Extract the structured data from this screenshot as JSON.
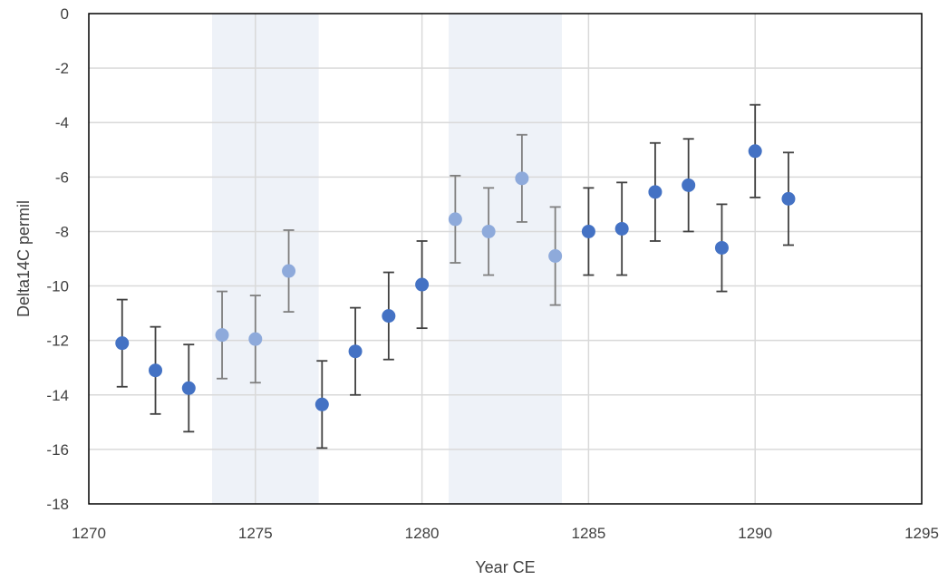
{
  "chart_data": {
    "type": "scatter",
    "title": "",
    "xlabel": "Year CE",
    "ylabel": "Delta14C permil",
    "xlim": [
      1270,
      1295
    ],
    "ylim": [
      -18,
      0
    ],
    "xticks": [
      1270,
      1275,
      1280,
      1285,
      1290,
      1295
    ],
    "yticks": [
      0,
      -2,
      -4,
      -6,
      -8,
      -10,
      -12,
      -14,
      -16,
      -18
    ],
    "grid": true,
    "legend": "none",
    "shaded_intervals": [
      [
        1273.7,
        1276.9
      ],
      [
        1280.8,
        1284.2
      ]
    ],
    "colors": {
      "point": "#4472C4",
      "point_highlight": "#8EAADB",
      "errorbar": "#404040",
      "errorbar_highlight": "#7F7F7F",
      "band": "#EEF2F8",
      "grid": "#D9D9D9",
      "axis": "#000000"
    },
    "series": [
      {
        "x": [
          1271,
          1272,
          1273,
          1274,
          1275,
          1276,
          1277,
          1278,
          1279,
          1280,
          1281,
          1282,
          1283,
          1284,
          1285,
          1286,
          1287,
          1288,
          1289,
          1290,
          1291
        ],
        "y": [
          -12.1,
          -13.1,
          -13.75,
          -11.8,
          -11.95,
          -9.45,
          -14.35,
          -12.4,
          -11.1,
          -9.95,
          -7.55,
          -8.0,
          -6.05,
          -8.9,
          -8.0,
          -7.9,
          -6.55,
          -6.3,
          -8.6,
          -5.05,
          -6.8
        ],
        "yerr": [
          1.6,
          1.6,
          1.6,
          1.6,
          1.6,
          1.5,
          1.6,
          1.6,
          1.6,
          1.6,
          1.6,
          1.6,
          1.6,
          1.8,
          1.6,
          1.7,
          1.8,
          1.7,
          1.6,
          1.7,
          1.7
        ],
        "highlighted": [
          false,
          false,
          false,
          true,
          true,
          true,
          false,
          false,
          false,
          false,
          true,
          true,
          true,
          true,
          false,
          false,
          false,
          false,
          false,
          false,
          false
        ]
      }
    ]
  }
}
